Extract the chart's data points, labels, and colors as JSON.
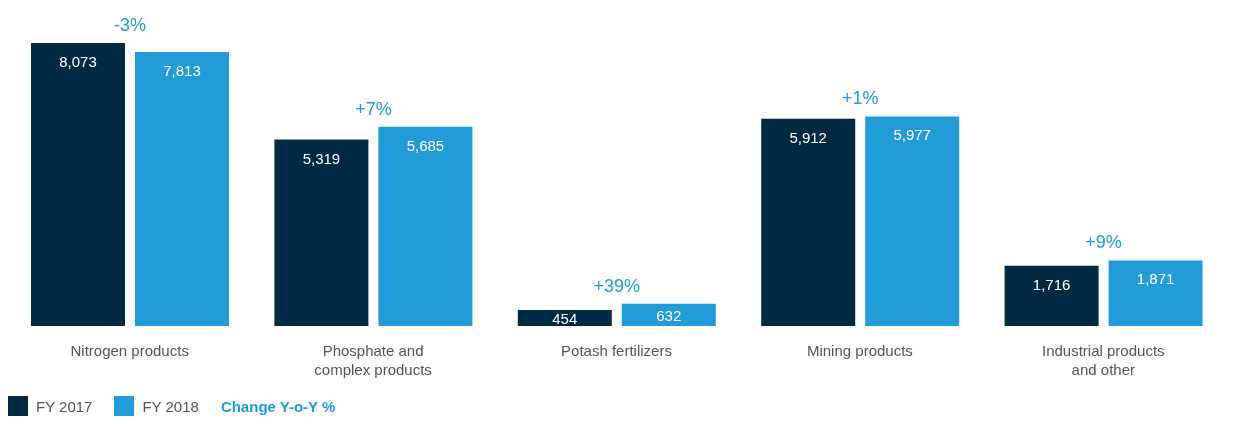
{
  "chart_data": {
    "type": "bar",
    "categories": [
      "Nitrogen products",
      "Phosphate and complex products",
      "Potash fertilizers",
      "Mining products",
      "Industrial products and other"
    ],
    "series": [
      {
        "name": "FY 2017",
        "color": "#002a42",
        "values": [
          8073,
          5319,
          454,
          5912,
          1716
        ],
        "value_labels": [
          "8,073",
          "5,319",
          "454",
          "5,912",
          "1,716"
        ]
      },
      {
        "name": "FY 2018",
        "color": "#229cd8",
        "values": [
          7813,
          5685,
          632,
          5977,
          1871
        ],
        "value_labels": [
          "7,813",
          "5,685",
          "632",
          "5,977",
          "1,871"
        ]
      }
    ],
    "legend": "bottom left",
    "grid": false,
    "annotations": [
      "-3%",
      "+7%",
      "+39%",
      "+1%",
      "+9%",
      "Change Y-o-Y %"
    ]
  }
}
